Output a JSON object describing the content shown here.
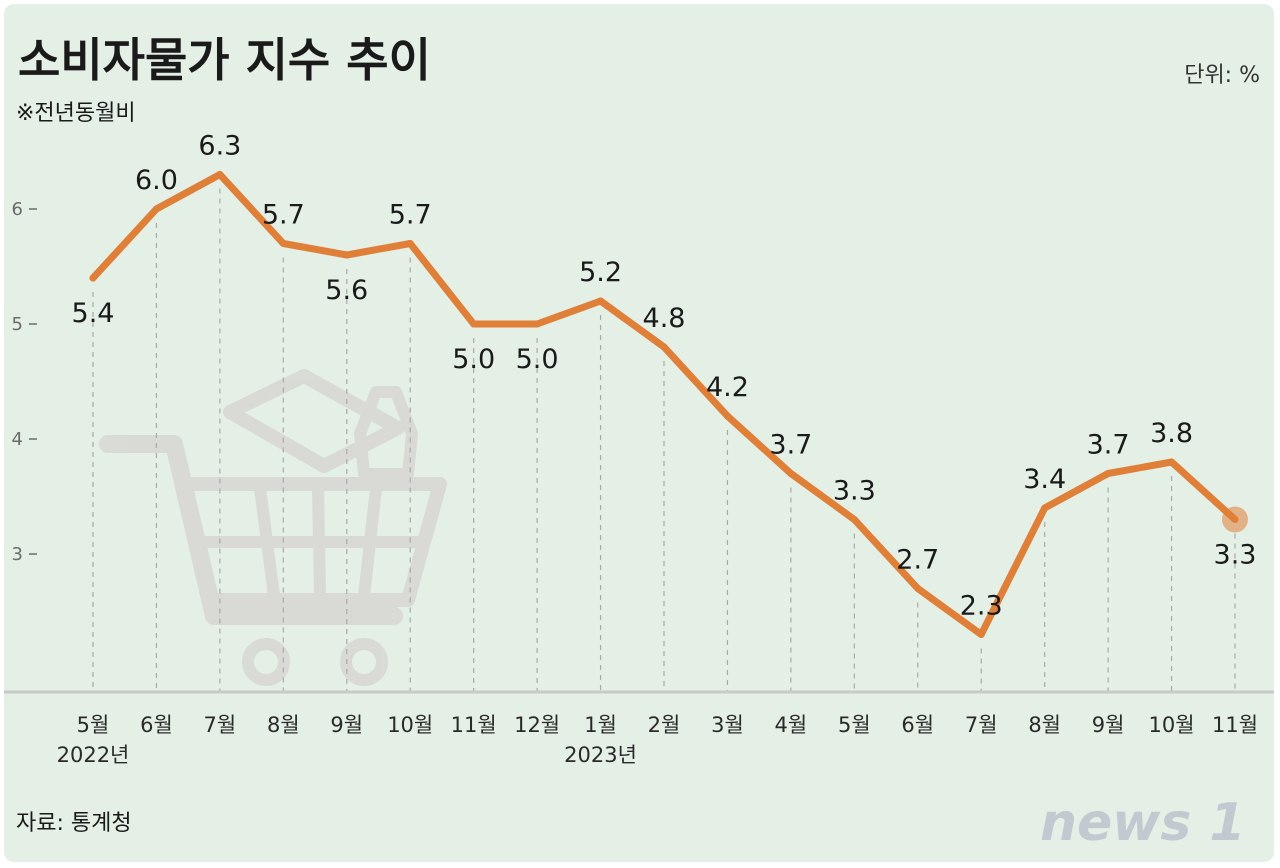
{
  "header": {
    "title": "소비자물가 지수 추이",
    "subtitle": "※전년동월비",
    "unit": "단위: %"
  },
  "footer": {
    "source": "자료: 통계청",
    "logo_text": "news 1"
  },
  "colors": {
    "background": "#e4efe6",
    "line": "#e07f37",
    "text": "#1a1a1a",
    "axis": "#6b6b6b",
    "gridline": "#a9a9a9",
    "baseline": "#c9c9c9",
    "watermark": "#d6d4d0",
    "logo": "#c3c9d0"
  },
  "chart_data": {
    "type": "line",
    "title": "소비자물가 지수 추이",
    "subtitle": "※전년동월비",
    "unit": "단위: %",
    "categories": [
      "5월",
      "6월",
      "7월",
      "8월",
      "9월",
      "10월",
      "11월",
      "12월",
      "1월",
      "2월",
      "3월",
      "4월",
      "5월",
      "6월",
      "7월",
      "8월",
      "9월",
      "10월",
      "11월"
    ],
    "year_labels": [
      "2022년",
      "",
      "",
      "",
      "",
      "",
      "",
      "",
      "2023년",
      "",
      "",
      "",
      "",
      "",
      "",
      "",
      "",
      "",
      ""
    ],
    "series": [
      {
        "values": [
          5.4,
          6.0,
          6.3,
          5.7,
          5.6,
          5.7,
          5.0,
          5.0,
          5.2,
          4.8,
          4.2,
          3.7,
          3.3,
          2.7,
          2.3,
          3.4,
          3.7,
          3.8,
          3.3
        ]
      }
    ],
    "value_labels": [
      "5.4",
      "6.0",
      "6.3",
      "5.7",
      "5.6",
      "5.7",
      "5.0",
      "5.0",
      "5.2",
      "4.8",
      "4.2",
      "3.7",
      "3.3",
      "2.7",
      "2.3",
      "3.4",
      "3.7",
      "3.8",
      "3.3"
    ],
    "label_position": [
      "below",
      "above",
      "above",
      "above",
      "below",
      "above",
      "below",
      "below",
      "above",
      "above",
      "above",
      "above",
      "above",
      "above",
      "above",
      "above",
      "above",
      "above",
      "below"
    ],
    "yticks": [
      3,
      4,
      5,
      6
    ],
    "ytick_labels": [
      "3",
      "4",
      "5",
      "6"
    ],
    "ylim": [
      1.8,
      7.0
    ],
    "grid": "vertical dashed",
    "highlight_last_point": true
  }
}
